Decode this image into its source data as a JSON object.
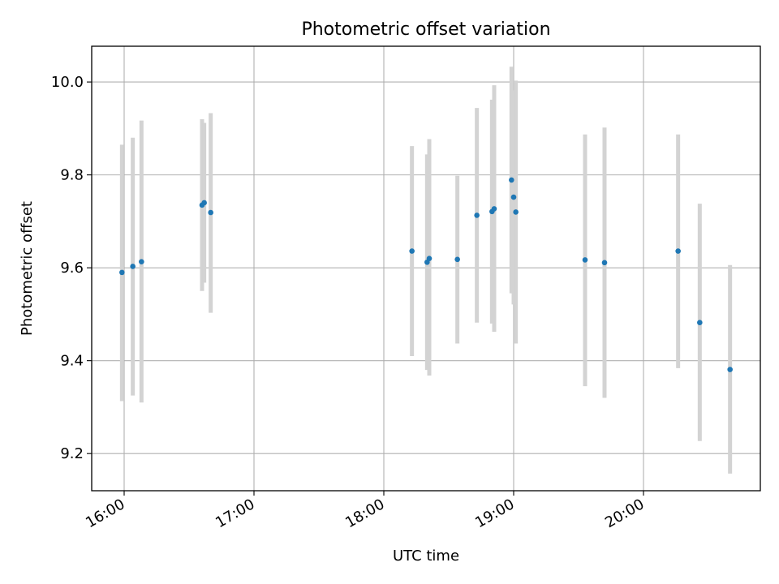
{
  "chart_data": {
    "type": "scatter",
    "title": "Photometric offset variation",
    "xlabel": "UTC time",
    "ylabel": "Photometric offset",
    "grid": true,
    "x_ticks": [
      "16:00",
      "17:00",
      "18:00",
      "19:00",
      "20:00"
    ],
    "y_ticks": [
      9.2,
      9.4,
      9.6,
      9.8,
      10.0
    ],
    "xlim": [
      "15:45",
      "20:54"
    ],
    "ylim": [
      9.12,
      10.077
    ],
    "colors": {
      "marker": "#1f77b4",
      "errorbar": "#d3d3d3",
      "grid": "#b0b0b0"
    },
    "points": [
      {
        "x": "15:59",
        "y": 9.59,
        "low": 9.313,
        "high": 9.865
      },
      {
        "x": "16:04",
        "y": 9.603,
        "low": 9.325,
        "high": 9.88
      },
      {
        "x": "16:08",
        "y": 9.613,
        "low": 9.31,
        "high": 9.917
      },
      {
        "x": "16:36",
        "y": 9.735,
        "low": 9.55,
        "high": 9.92
      },
      {
        "x": "16:37",
        "y": 9.74,
        "low": 9.568,
        "high": 9.912
      },
      {
        "x": "16:40",
        "y": 9.719,
        "low": 9.503,
        "high": 9.933
      },
      {
        "x": "18:13",
        "y": 9.636,
        "low": 9.41,
        "high": 9.862
      },
      {
        "x": "18:20",
        "y": 9.612,
        "low": 9.38,
        "high": 9.844
      },
      {
        "x": "18:21",
        "y": 9.62,
        "low": 9.368,
        "high": 9.877
      },
      {
        "x": "18:34",
        "y": 9.618,
        "low": 9.437,
        "high": 9.798
      },
      {
        "x": "18:43",
        "y": 9.713,
        "low": 9.482,
        "high": 9.944
      },
      {
        "x": "18:50",
        "y": 9.721,
        "low": 9.48,
        "high": 9.962
      },
      {
        "x": "18:51",
        "y": 9.727,
        "low": 9.462,
        "high": 9.993
      },
      {
        "x": "18:59",
        "y": 9.789,
        "low": 9.545,
        "high": 10.033
      },
      {
        "x": "19:00",
        "y": 9.752,
        "low": 9.521,
        "high": 9.982
      },
      {
        "x": "19:01",
        "y": 9.72,
        "low": 9.437,
        "high": 10.003
      },
      {
        "x": "19:33",
        "y": 9.617,
        "low": 9.345,
        "high": 9.887
      },
      {
        "x": "19:42",
        "y": 9.611,
        "low": 9.32,
        "high": 9.902
      },
      {
        "x": "20:16",
        "y": 9.636,
        "low": 9.384,
        "high": 9.887
      },
      {
        "x": "20:26",
        "y": 9.482,
        "low": 9.227,
        "high": 9.738
      },
      {
        "x": "20:40",
        "y": 9.381,
        "low": 9.157,
        "high": 9.606
      }
    ]
  }
}
